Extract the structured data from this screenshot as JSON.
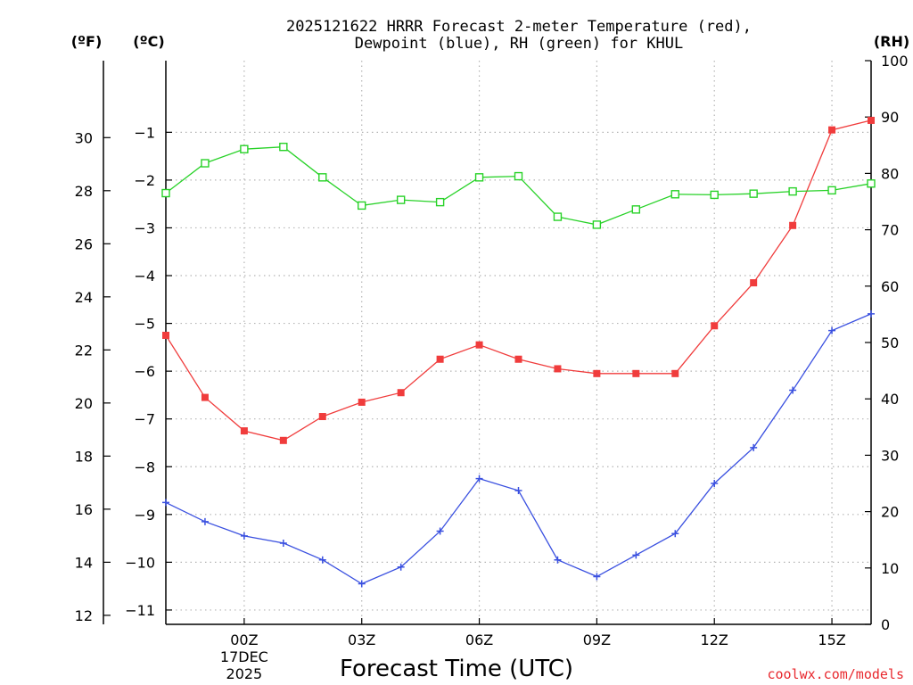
{
  "chart_data": {
    "type": "line",
    "title_line1": "2025121622 HRRR Forecast 2-meter Temperature (red),",
    "title_line2": "Dewpoint (blue), RH (green) for KHUL",
    "left_outer_unit": "(ºF)",
    "left_inner_unit": "(ºC)",
    "right_unit": "(RH)",
    "xlabel": "Forecast Time (UTC)",
    "credit": "coolwx.com/models",
    "x_hours": [
      22,
      23,
      24,
      25,
      26,
      27,
      28,
      29,
      30,
      31,
      32,
      33,
      34,
      35,
      36,
      37,
      38,
      39,
      40
    ],
    "xlim": [
      22,
      40
    ],
    "x_ticks": [
      {
        "hour": 24,
        "label": "00Z",
        "sub1": "17DEC",
        "sub2": "2025"
      },
      {
        "hour": 27,
        "label": "03Z"
      },
      {
        "hour": 30,
        "label": "06Z"
      },
      {
        "hour": 33,
        "label": "09Z"
      },
      {
        "hour": 36,
        "label": "12Z"
      },
      {
        "hour": 39,
        "label": "15Z"
      }
    ],
    "ylim_c": [
      -11.3,
      0.5
    ],
    "yticks_c": [
      -1,
      -2,
      -3,
      -4,
      -5,
      -6,
      -7,
      -8,
      -9,
      -10,
      -11
    ],
    "yticks_f": [
      30,
      28,
      26,
      24,
      22,
      20,
      18,
      16,
      14,
      12
    ],
    "ylim_rh": [
      0,
      100
    ],
    "yticks_rh": [
      0,
      10,
      20,
      30,
      40,
      50,
      60,
      70,
      80,
      90,
      100
    ],
    "series": [
      {
        "name": "Temperature",
        "unit": "C",
        "color": "#f03c3c",
        "marker": "filled-square",
        "values": [
          -5.25,
          -6.55,
          -7.25,
          -7.45,
          -6.95,
          -6.65,
          -6.45,
          -5.75,
          -5.45,
          -5.75,
          -5.95,
          -6.05,
          -6.05,
          -6.05,
          -5.05,
          -4.15,
          -2.95,
          -0.95,
          -0.75
        ]
      },
      {
        "name": "Dewpoint",
        "unit": "C",
        "color": "#3a50e0",
        "marker": "plus",
        "values": [
          -8.75,
          -9.15,
          -9.45,
          -9.6,
          -9.95,
          -10.45,
          -10.1,
          -9.35,
          -8.25,
          -8.5,
          -9.95,
          -10.3,
          -9.85,
          -9.4,
          -8.35,
          -7.6,
          -6.4,
          -5.15,
          -4.8
        ]
      },
      {
        "name": "RH",
        "unit": "%",
        "color": "#28d228",
        "marker": "open-square",
        "values": [
          76.5,
          81.8,
          84.3,
          84.7,
          79.3,
          74.3,
          75.3,
          74.9,
          79.3,
          79.5,
          72.3,
          70.9,
          73.6,
          76.3,
          76.2,
          76.4,
          76.8,
          77,
          78.2
        ]
      }
    ]
  }
}
